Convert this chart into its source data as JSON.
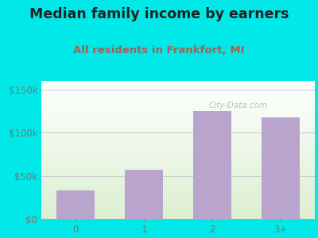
{
  "title": "Median family income by earners",
  "subtitle": "All residents in Frankfort, MI",
  "categories": [
    "0",
    "1",
    "2",
    "3+"
  ],
  "values": [
    33000,
    57000,
    125000,
    118000
  ],
  "bar_color": "#b8a4cc",
  "yticks": [
    0,
    50000,
    100000,
    150000
  ],
  "ytick_labels": [
    "$0",
    "$50k",
    "$100k",
    "$150k"
  ],
  "ylim": [
    0,
    160000
  ],
  "outer_bg": "#00e8e8",
  "title_color": "#222222",
  "subtitle_color": "#996655",
  "tick_color": "#777777",
  "grid_color": "#cccccc",
  "watermark": "City-Data.com",
  "title_fontsize": 12.5,
  "subtitle_fontsize": 9.5,
  "tick_fontsize": 8.5
}
